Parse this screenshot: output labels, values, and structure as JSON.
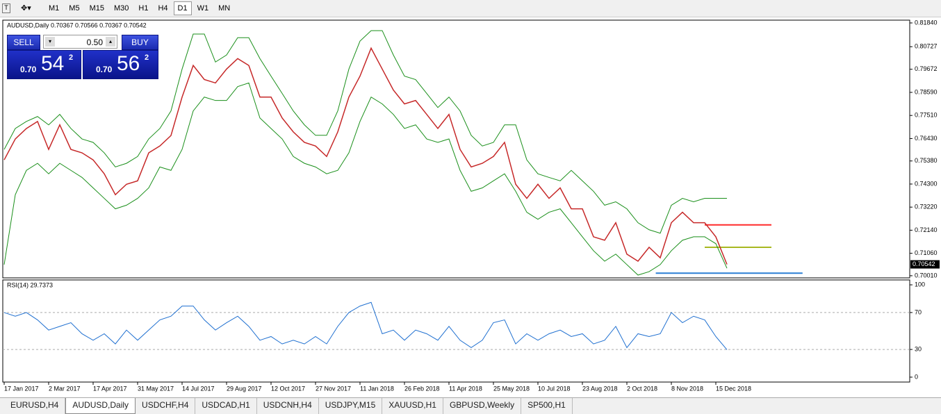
{
  "toolbar": {
    "timeframes": [
      {
        "label": "M1",
        "selected": false
      },
      {
        "label": "M5",
        "selected": false
      },
      {
        "label": "M15",
        "selected": false
      },
      {
        "label": "M30",
        "selected": false
      },
      {
        "label": "H1",
        "selected": false
      },
      {
        "label": "H4",
        "selected": false
      },
      {
        "label": "D1",
        "selected": true
      },
      {
        "label": "W1",
        "selected": false
      },
      {
        "label": "MN",
        "selected": false
      }
    ]
  },
  "trade_panel": {
    "sell": "SELL",
    "buy": "BUY",
    "volume": "0.50",
    "bid_prefix": "0.70",
    "bid_big": "54",
    "bid_sup": "2",
    "ask_prefix": "0.70",
    "ask_big": "56",
    "ask_sup": "2"
  },
  "chart_data": [
    {
      "type": "line",
      "title": "AUDUSD,Daily 0.70367 0.70566 0.70367 0.70542",
      "ylim": [
        0.6991,
        0.8197
      ],
      "yticks": [
        {
          "value": 0.8184,
          "label": "0.81840"
        },
        {
          "value": 0.80727,
          "label": "0.80727"
        },
        {
          "value": 0.79672,
          "label": "0.79672"
        },
        {
          "value": 0.7859,
          "label": "0.78590"
        },
        {
          "value": 0.7751,
          "label": "0.77510"
        },
        {
          "value": 0.7643,
          "label": "0.76430"
        },
        {
          "value": 0.7538,
          "label": "0.75380"
        },
        {
          "value": 0.743,
          "label": "0.74300"
        },
        {
          "value": 0.7322,
          "label": "0.73220"
        },
        {
          "value": 0.7214,
          "label": "0.72140"
        },
        {
          "value": 0.7106,
          "label": "0.71060"
        },
        {
          "value": 0.7001,
          "label": "0.70010"
        }
      ],
      "last_price": 0.70542,
      "series": [
        {
          "color": "#c62828",
          "values": [
            0.7543,
            0.7641,
            0.769,
            0.7723,
            0.7592,
            0.7707,
            0.7592,
            0.7576,
            0.7543,
            0.7478,
            0.738,
            0.7429,
            0.7445,
            0.7576,
            0.7608,
            0.7657,
            0.7837,
            0.7985,
            0.7919,
            0.7903,
            0.7968,
            0.8017,
            0.7985,
            0.7837,
            0.7837,
            0.7739,
            0.7674,
            0.7625,
            0.7608,
            0.7559,
            0.7674,
            0.7837,
            0.7935,
            0.8066,
            0.7968,
            0.787,
            0.7805,
            0.7821,
            0.7756,
            0.769,
            0.7756,
            0.7592,
            0.751,
            0.7527,
            0.7559,
            0.7625,
            0.7429,
            0.7363,
            0.7429,
            0.7363,
            0.7412,
            0.7314,
            0.7314,
            0.7183,
            0.7167,
            0.7249,
            0.7102,
            0.7069,
            0.7134,
            0.7085,
            0.7249,
            0.7298,
            0.7249,
            0.7249,
            0.7183,
            0.7054
          ]
        },
        {
          "color": "#1a8f1a",
          "values": [
            0.7592,
            0.769,
            0.7723,
            0.7746,
            0.7707,
            0.7756,
            0.769,
            0.7641,
            0.7625,
            0.7576,
            0.751,
            0.7527,
            0.7559,
            0.7641,
            0.769,
            0.7772,
            0.7968,
            0.8132,
            0.8132,
            0.8001,
            0.8034,
            0.8115,
            0.8115,
            0.8017,
            0.7935,
            0.7854,
            0.7772,
            0.7707,
            0.7658,
            0.7658,
            0.7772,
            0.7968,
            0.8099,
            0.8148,
            0.8148,
            0.8034,
            0.7935,
            0.7919,
            0.7854,
            0.7788,
            0.7837,
            0.7772,
            0.7658,
            0.7608,
            0.7625,
            0.7707,
            0.7707,
            0.7543,
            0.7478,
            0.7461,
            0.7445,
            0.7494,
            0.7445,
            0.7396,
            0.7331,
            0.7347,
            0.7314,
            0.7249,
            0.7216,
            0.72,
            0.7331,
            0.7363,
            0.7347,
            0.7363,
            0.7363,
            0.7363
          ]
        },
        {
          "color": "#1a8f1a",
          "values": [
            0.7053,
            0.738,
            0.7494,
            0.7527,
            0.7478,
            0.7527,
            0.7494,
            0.7461,
            0.7412,
            0.7363,
            0.7314,
            0.7331,
            0.7363,
            0.7412,
            0.751,
            0.7494,
            0.7592,
            0.7772,
            0.7837,
            0.7821,
            0.7821,
            0.7886,
            0.7903,
            0.7739,
            0.769,
            0.7641,
            0.7559,
            0.7527,
            0.751,
            0.7478,
            0.7494,
            0.7576,
            0.7723,
            0.7837,
            0.7805,
            0.7756,
            0.769,
            0.7707,
            0.7641,
            0.7625,
            0.7641,
            0.7494,
            0.7396,
            0.7412,
            0.7445,
            0.7478,
            0.7396,
            0.7298,
            0.7265,
            0.7298,
            0.7314,
            0.7249,
            0.7183,
            0.7118,
            0.7069,
            0.7102,
            0.7053,
            0.7004,
            0.702,
            0.7053,
            0.7118,
            0.7167,
            0.7183,
            0.7183,
            0.7151,
            0.7036
          ]
        }
      ],
      "hlines": [
        {
          "value": 0.7239,
          "color": "#ff2a2a",
          "from": 63,
          "to": 69
        },
        {
          "value": 0.7134,
          "color": "#a8b820",
          "from": 63,
          "to": 69
        },
        {
          "value": 0.7013,
          "color": "#2a7fd4",
          "from": 58.6,
          "to": 71.8
        }
      ]
    },
    {
      "type": "line",
      "title": "RSI(14) 29.7373",
      "ylim": [
        -5.3,
        105.3
      ],
      "yticks": [
        100,
        70,
        30,
        0
      ],
      "levels": [
        70,
        30
      ],
      "categories": [
        "17 Jan 2017",
        null,
        null,
        null,
        "2 Mar 2017",
        null,
        null,
        null,
        "17 Apr 2017",
        null,
        null,
        null,
        "31 May 2017",
        null,
        null,
        null,
        "14 Jul 2017",
        null,
        null,
        null,
        "29 Aug 2017",
        null,
        null,
        null,
        "12 Oct 2017",
        null,
        null,
        null,
        "27 Nov 2017",
        null,
        null,
        null,
        "11 Jan 2018",
        null,
        null,
        null,
        "26 Feb 2018",
        null,
        null,
        null,
        "11 Apr 2018",
        null,
        null,
        null,
        "25 May 2018",
        null,
        null,
        null,
        "10 Jul 2018",
        null,
        null,
        null,
        "23 Aug 2018",
        null,
        null,
        null,
        "2 Oct 2018",
        null,
        null,
        null,
        "8 Nov 2018",
        null,
        null,
        null,
        "15 Dec 2018",
        null
      ],
      "series": [
        {
          "color": "#1e6fd0",
          "values": [
            70,
            66,
            70,
            62,
            51,
            55,
            59,
            47,
            40,
            47,
            36,
            51,
            40,
            51,
            62,
            66,
            77,
            77,
            62,
            51,
            59,
            66,
            55,
            40,
            44,
            36,
            40,
            36,
            44,
            36,
            55,
            70,
            77,
            81,
            47,
            51,
            40,
            51,
            47,
            40,
            55,
            40,
            32,
            40,
            59,
            62,
            36,
            47,
            40,
            47,
            51,
            44,
            47,
            36,
            40,
            55,
            32,
            47,
            44,
            47,
            70,
            59,
            66,
            62,
            44,
            29.7
          ]
        }
      ]
    }
  ],
  "tabs": [
    {
      "label": "EURUSD,H4",
      "active": false
    },
    {
      "label": "AUDUSD,Daily",
      "active": true
    },
    {
      "label": "USDCHF,H4",
      "active": false
    },
    {
      "label": "USDCAD,H1",
      "active": false
    },
    {
      "label": "USDCNH,H4",
      "active": false
    },
    {
      "label": "USDJPY,M15",
      "active": false
    },
    {
      "label": "XAUUSD,H1",
      "active": false
    },
    {
      "label": "GBPUSD,Weekly",
      "active": false
    },
    {
      "label": "SP500,H1",
      "active": false
    }
  ]
}
